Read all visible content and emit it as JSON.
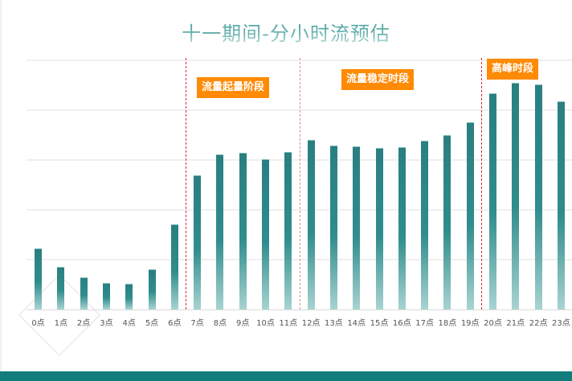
{
  "title": "十一期间-分小时流预估",
  "colors": {
    "bar_top": "#2a7f80",
    "bar_bottom": "#a8d3d2",
    "phase_label_bg": "#ff8a05",
    "divider": "#d0303a",
    "footer": "#117d7c"
  },
  "phases": [
    {
      "label": "流量起量阶段",
      "start_hour": 7,
      "end_hour": 11
    },
    {
      "label": "流量稳定时段",
      "start_hour": 12,
      "end_hour": 19
    },
    {
      "label": "高峰时段",
      "start_hour": 20,
      "end_hour": 23
    }
  ],
  "chart_data": {
    "type": "bar",
    "title": "十一期间-分小时流预估",
    "xlabel": "",
    "ylabel": "",
    "ylim": [
      0,
      500
    ],
    "grid": true,
    "y_tick_labels_visible": false,
    "categories": [
      "0点",
      "1点",
      "2点",
      "3点",
      "4点",
      "5点",
      "6点",
      "7点",
      "8点",
      "9点",
      "10点",
      "11点",
      "12点",
      "13点",
      "14点",
      "15点",
      "16点",
      "17点",
      "18点",
      "19点",
      "20点",
      "21点",
      "22点",
      "23点"
    ],
    "values": [
      123,
      85,
      65,
      53,
      52,
      81,
      171,
      269,
      311,
      315,
      302,
      316,
      340,
      329,
      327,
      324,
      326,
      339,
      350,
      376,
      434,
      455,
      452,
      418
    ],
    "annotations": [
      {
        "text": "流量起量阶段",
        "x_range": [
          "7点",
          "11点"
        ]
      },
      {
        "text": "流量稳定时段",
        "x_range": [
          "12点",
          "19点"
        ]
      },
      {
        "text": "高峰时段",
        "x_range": [
          "20点",
          "23点"
        ]
      }
    ]
  }
}
